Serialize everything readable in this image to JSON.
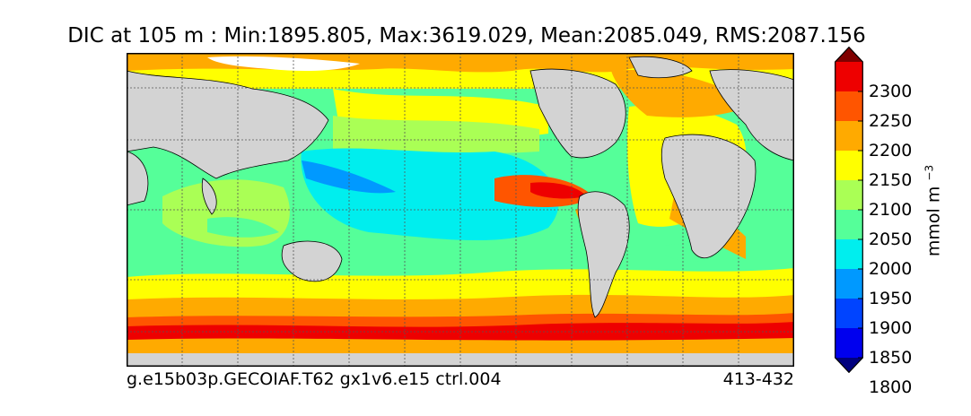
{
  "title": "DIC at 105 m : Min:1895.805, Max:3619.029, Mean:2085.049, RMS:2087.156",
  "caption": {
    "left": "g.e15b03p.GECOIAF.T62 gx1v6.e15 ctrl.004",
    "right": "413-432"
  },
  "colorbar": {
    "unit_text": "mmol m",
    "unit_exponent": "−3",
    "ticks": [
      "2300",
      "2250",
      "2200",
      "2150",
      "2100",
      "2050",
      "2000",
      "1950",
      "1900",
      "1850",
      "1800"
    ],
    "colors_top_to_bottom": [
      "#7f0000",
      "#ee0000",
      "#ff5500",
      "#ffaa00",
      "#ffff00",
      "#aaff55",
      "#55ff99",
      "#00eeee",
      "#0099ff",
      "#0044ff",
      "#0000ee",
      "#00007f"
    ]
  },
  "map": {
    "land_color": "#d3d3d3",
    "missing_color": "#ffffff",
    "gridlines": "dotted"
  }
}
